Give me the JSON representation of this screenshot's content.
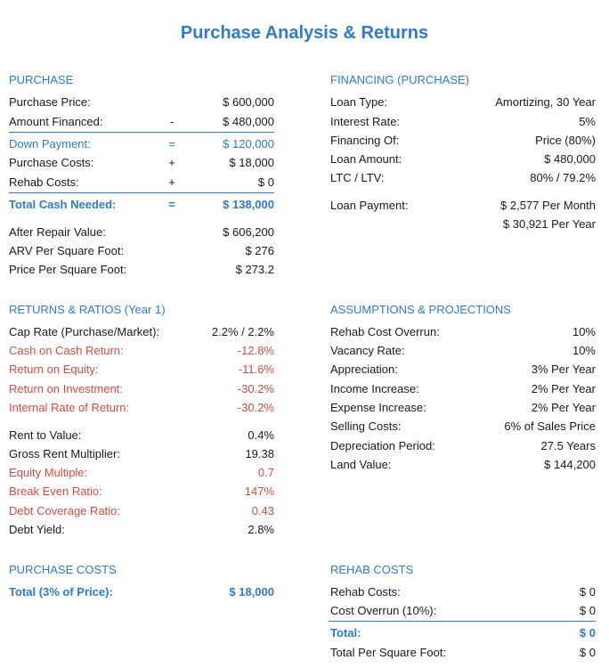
{
  "title": "Purchase Analysis & Returns",
  "purchase": {
    "heading": "PURCHASE",
    "rows": [
      {
        "label": "Purchase Price:",
        "op": "",
        "value": "$ 600,000"
      },
      {
        "label": "Amount Financed:",
        "op": "-",
        "value": "$ 480,000"
      },
      {
        "label": "Down Payment:",
        "op": "=",
        "value": "$ 120,000"
      },
      {
        "label": "Purchase Costs:",
        "op": "+",
        "value": "$ 18,000"
      },
      {
        "label": "Rehab Costs:",
        "op": "+",
        "value": "$ 0"
      },
      {
        "label": "Total Cash Needed:",
        "op": "=",
        "value": "$ 138,000"
      },
      {
        "label": "After Repair Value:",
        "op": "",
        "value": "$ 606,200"
      },
      {
        "label": "ARV Per Square Foot:",
        "op": "",
        "value": "$ 276"
      },
      {
        "label": "Price Per Square Foot:",
        "op": "",
        "value": "$ 273.2"
      }
    ]
  },
  "financing": {
    "heading": "FINANCING (PURCHASE)",
    "rows": [
      {
        "label": "Loan Type:",
        "value": "Amortizing, 30 Year"
      },
      {
        "label": "Interest Rate:",
        "value": "5%"
      },
      {
        "label": "Financing Of:",
        "value": "Price (80%)"
      },
      {
        "label": "Loan Amount:",
        "value": "$ 480,000"
      },
      {
        "label": "LTC / LTV:",
        "value": "80% / 79.2%"
      },
      {
        "label": "Loan Payment:",
        "value": "$ 2,577 Per Month"
      },
      {
        "label": "",
        "value": "$ 30,921 Per Year"
      }
    ]
  },
  "returns": {
    "heading": "RETURNS & RATIOS  (Year 1)",
    "rows": [
      {
        "label": "Cap Rate (Purchase/Market):",
        "value": "2.2% / 2.2%"
      },
      {
        "label": "Cash on Cash Return:",
        "value": "-12.8%"
      },
      {
        "label": "Return on Equity:",
        "value": "-11.6%"
      },
      {
        "label": "Return on Investment:",
        "value": "-30.2%"
      },
      {
        "label": "Internal Rate of Return:",
        "value": "-30.2%"
      },
      {
        "label": "Rent to Value:",
        "value": "0.4%"
      },
      {
        "label": "Gross Rent Multiplier:",
        "value": "19.38"
      },
      {
        "label": "Equity Multiple:",
        "value": "0.7"
      },
      {
        "label": "Break Even Ratio:",
        "value": "147%"
      },
      {
        "label": "Debt Coverage Ratio:",
        "value": "0.43"
      },
      {
        "label": "Debt Yield:",
        "value": "2.8%"
      }
    ]
  },
  "assumptions": {
    "heading": "ASSUMPTIONS & PROJECTIONS",
    "rows": [
      {
        "label": "Rehab Cost Overrun:",
        "value": "10%"
      },
      {
        "label": "Vacancy Rate:",
        "value": "10%"
      },
      {
        "label": "Appreciation:",
        "value": "3% Per Year"
      },
      {
        "label": "Income Increase:",
        "value": "2% Per Year"
      },
      {
        "label": "Expense Increase:",
        "value": "2% Per Year"
      },
      {
        "label": "Selling Costs:",
        "value": "6% of Sales Price"
      },
      {
        "label": "Depreciation Period:",
        "value": "27.5 Years"
      },
      {
        "label": "Land Value:",
        "value": "$ 144,200"
      }
    ]
  },
  "purchase_costs": {
    "heading": "PURCHASE COSTS",
    "total_label": "Total (3% of Price):",
    "total_value": "$ 18,000"
  },
  "rehab_costs": {
    "heading": "REHAB COSTS",
    "rows": [
      {
        "label": "Rehab Costs:",
        "value": "$ 0"
      },
      {
        "label": "Cost Overrun (10%):",
        "value": "$ 0"
      },
      {
        "label": "Total:",
        "value": "$ 0"
      },
      {
        "label": "Total Per Square Foot:",
        "value": "$ 0"
      }
    ]
  },
  "colors": {
    "accent": "#2b7bd6",
    "negative": "#e0483d",
    "text": "#1a1a1a"
  }
}
